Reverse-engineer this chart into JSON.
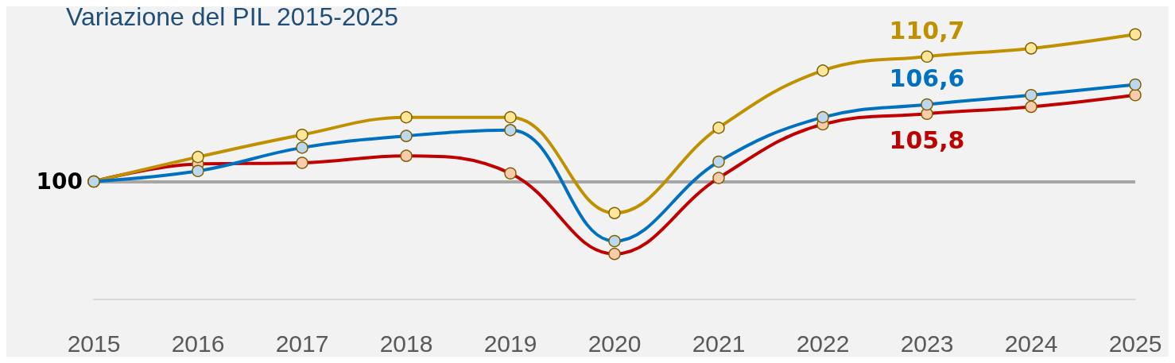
{
  "chart_data": {
    "type": "line",
    "title": "Variazione del PIL 2015-2025",
    "categories": [
      "2015",
      "2016",
      "2017",
      "2018",
      "2019",
      "2020",
      "2021",
      "2022",
      "2023",
      "2024",
      "2025"
    ],
    "series": [
      {
        "color": "#bf9000",
        "values": [
          100,
          102.1,
          104.0,
          105.5,
          105.5,
          97.3,
          104.6,
          109.5,
          110.7,
          111.4,
          112.6
        ],
        "value_labels": [
          null,
          null,
          null,
          null,
          null,
          null,
          null,
          null,
          "110,7",
          null,
          null
        ]
      },
      {
        "color": "#0070c0",
        "values": [
          100,
          100.9,
          102.9,
          103.9,
          104.4,
          94.9,
          101.7,
          105.5,
          106.6,
          107.4,
          108.3
        ],
        "value_labels": [
          null,
          null,
          null,
          null,
          null,
          null,
          null,
          null,
          "106,6",
          null,
          null
        ]
      },
      {
        "color": "#c00000",
        "values": [
          100,
          101.5,
          101.6,
          102.2,
          100.7,
          93.8,
          100.3,
          104.9,
          105.8,
          106.4,
          107.4
        ],
        "value_labels": [
          null,
          null,
          null,
          null,
          null,
          null,
          null,
          null,
          "105,8",
          null,
          null
        ]
      }
    ],
    "ylim": [
      89.9,
      115
    ],
    "ref_lines": [
      {
        "axis": "y",
        "value": 100,
        "label": "100",
        "color": "#a6a6a6"
      }
    ],
    "marker": "circle",
    "line_style": "solid",
    "grid": false
  }
}
